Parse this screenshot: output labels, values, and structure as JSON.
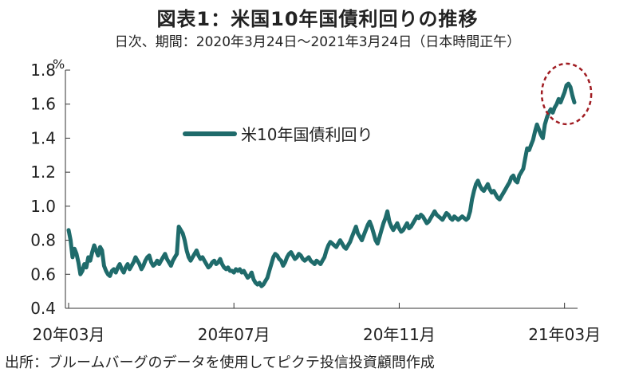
{
  "chart_data": {
    "type": "line",
    "title": "図表1：米国10年国債利回りの推移",
    "subtitle": "日次、期間：2020年3月24日～2021年3月24日（日本時間正午）",
    "ylabel": "%",
    "ylim": [
      0.4,
      1.8
    ],
    "yticks": [
      "0.4",
      "0.6",
      "0.8",
      "1.0",
      "1.2",
      "1.4",
      "1.6",
      "1.8"
    ],
    "xticks": [
      "20年03月",
      "20年07月",
      "20年11月",
      "21年03月"
    ],
    "xtick_index": [
      0,
      84,
      168,
      252
    ],
    "source": "出所：ブルームバーグのデータを使用してピクテ投信投資顧問作成",
    "series": [
      {
        "name": "米10年国債利回り",
        "color": "#1f6b6b",
        "values": [
          0.86,
          0.8,
          0.7,
          0.75,
          0.72,
          0.67,
          0.6,
          0.62,
          0.66,
          0.64,
          0.7,
          0.68,
          0.73,
          0.77,
          0.74,
          0.71,
          0.76,
          0.74,
          0.65,
          0.62,
          0.6,
          0.59,
          0.62,
          0.63,
          0.61,
          0.64,
          0.66,
          0.63,
          0.61,
          0.64,
          0.66,
          0.63,
          0.65,
          0.67,
          0.7,
          0.68,
          0.66,
          0.63,
          0.65,
          0.68,
          0.7,
          0.71,
          0.67,
          0.65,
          0.66,
          0.68,
          0.66,
          0.68,
          0.7,
          0.72,
          0.69,
          0.67,
          0.65,
          0.68,
          0.7,
          0.72,
          0.88,
          0.86,
          0.84,
          0.8,
          0.74,
          0.7,
          0.68,
          0.7,
          0.72,
          0.74,
          0.71,
          0.69,
          0.7,
          0.68,
          0.66,
          0.64,
          0.65,
          0.67,
          0.68,
          0.66,
          0.67,
          0.69,
          0.66,
          0.64,
          0.63,
          0.64,
          0.62,
          0.62,
          0.61,
          0.63,
          0.62,
          0.63,
          0.61,
          0.62,
          0.6,
          0.58,
          0.59,
          0.61,
          0.57,
          0.55,
          0.54,
          0.55,
          0.53,
          0.54,
          0.56,
          0.58,
          0.62,
          0.66,
          0.7,
          0.72,
          0.71,
          0.69,
          0.68,
          0.65,
          0.67,
          0.7,
          0.72,
          0.73,
          0.71,
          0.69,
          0.7,
          0.72,
          0.71,
          0.69,
          0.68,
          0.69,
          0.7,
          0.68,
          0.67,
          0.66,
          0.68,
          0.67,
          0.66,
          0.68,
          0.7,
          0.74,
          0.77,
          0.79,
          0.78,
          0.77,
          0.76,
          0.78,
          0.8,
          0.78,
          0.76,
          0.75,
          0.77,
          0.79,
          0.82,
          0.85,
          0.88,
          0.84,
          0.82,
          0.8,
          0.83,
          0.86,
          0.89,
          0.91,
          0.88,
          0.84,
          0.8,
          0.78,
          0.82,
          0.86,
          0.9,
          0.93,
          0.97,
          0.91,
          0.88,
          0.86,
          0.88,
          0.9,
          0.87,
          0.85,
          0.86,
          0.88,
          0.9,
          0.87,
          0.88,
          0.9,
          0.92,
          0.94,
          0.93,
          0.95,
          0.94,
          0.92,
          0.9,
          0.91,
          0.93,
          0.95,
          0.97,
          0.95,
          0.94,
          0.93,
          0.92,
          0.94,
          0.96,
          0.95,
          0.93,
          0.92,
          0.94,
          0.93,
          0.92,
          0.93,
          0.94,
          0.93,
          0.92,
          0.93,
          0.97,
          1.04,
          1.09,
          1.13,
          1.15,
          1.12,
          1.1,
          1.09,
          1.11,
          1.13,
          1.1,
          1.08,
          1.09,
          1.07,
          1.05,
          1.04,
          1.06,
          1.08,
          1.1,
          1.12,
          1.14,
          1.17,
          1.18,
          1.15,
          1.14,
          1.18,
          1.2,
          1.22,
          1.28,
          1.34,
          1.33,
          1.36,
          1.39,
          1.44,
          1.48,
          1.45,
          1.42,
          1.4,
          1.48,
          1.52,
          1.55,
          1.57,
          1.55,
          1.58,
          1.6,
          1.63,
          1.61,
          1.64,
          1.67,
          1.71,
          1.72,
          1.7,
          1.65,
          1.61
        ]
      }
    ],
    "legend_position": "center-left",
    "highlight": {
      "shape": "dashed-circle",
      "color": "#a01c22"
    }
  }
}
